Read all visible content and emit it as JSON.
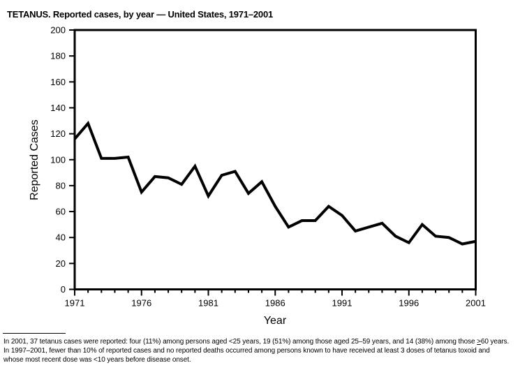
{
  "page": {
    "title": "TETANUS. Reported cases, by year — United States, 1971–2001"
  },
  "chart_data": {
    "type": "line",
    "title": "TETANUS. Reported cases, by year — United States, 1971–2001",
    "xlabel": "Year",
    "ylabel": "Reported Cases",
    "x": [
      1971,
      1972,
      1973,
      1974,
      1975,
      1976,
      1977,
      1978,
      1979,
      1980,
      1981,
      1982,
      1983,
      1984,
      1985,
      1986,
      1987,
      1988,
      1989,
      1990,
      1991,
      1992,
      1993,
      1994,
      1995,
      1996,
      1997,
      1998,
      1999,
      2000,
      2001
    ],
    "values": [
      116,
      128,
      101,
      101,
      102,
      75,
      87,
      86,
      81,
      95,
      72,
      88,
      91,
      74,
      83,
      64,
      48,
      53,
      53,
      64,
      57,
      45,
      48,
      51,
      41,
      36,
      50,
      41,
      40,
      35,
      37
    ],
    "ylim": [
      0,
      200
    ],
    "yticks": [
      0,
      20,
      40,
      60,
      80,
      100,
      120,
      140,
      160,
      180,
      200
    ],
    "xticks_labeled": [
      1971,
      1976,
      1981,
      1986,
      1991,
      1996,
      2001
    ],
    "line_color": "#000000",
    "grid": false,
    "legend": "none"
  },
  "footnote": {
    "line1_part1": "In 2001, 37 tetanus cases were reported: four (11%) among persons aged <25 years, 19 (51%) among those aged 25–59 years, and 14 (38%) among those ",
    "line1_gte_symbol": ">",
    "line1_part2": "60 years.",
    "line2": "In 1997–2001, fewer than 10% of reported cases and no reported deaths occurred among persons known to have received at least 3 doses of tetanus toxoid and",
    "line3": "whose most recent dose was <10 years before disease onset."
  }
}
